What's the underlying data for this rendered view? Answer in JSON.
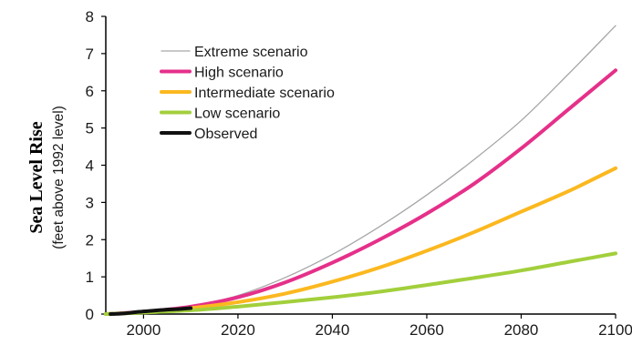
{
  "chart_data": {
    "type": "line",
    "title": "",
    "xlabel": "",
    "ylabel": "Sea Level Rise",
    "ylabel_sub": "(feet above 1992 level)",
    "xlim": [
      1992,
      2100
    ],
    "ylim": [
      0,
      8
    ],
    "xticks": [
      2000,
      2020,
      2040,
      2060,
      2080,
      2100
    ],
    "yticks": [
      0,
      1,
      2,
      3,
      4,
      5,
      6,
      7,
      8
    ],
    "grid": false,
    "legend_position": "top-left",
    "x": [
      1992,
      2000,
      2010,
      2020,
      2030,
      2040,
      2050,
      2060,
      2070,
      2080,
      2090,
      2100
    ],
    "series": [
      {
        "name": "Extreme scenario",
        "color": "#a6a6a6",
        "width": 1.3,
        "values": [
          0,
          0.06,
          0.2,
          0.5,
          0.98,
          1.6,
          2.35,
          3.2,
          4.15,
          5.2,
          6.45,
          7.75
        ]
      },
      {
        "name": "High scenario",
        "color": "#e5308a",
        "width": 4,
        "values": [
          0,
          0.06,
          0.2,
          0.45,
          0.85,
          1.38,
          2.0,
          2.7,
          3.5,
          4.45,
          5.5,
          6.55
        ]
      },
      {
        "name": "Intermediate scenario",
        "color": "#fbb81f",
        "width": 4,
        "values": [
          0,
          0.05,
          0.16,
          0.32,
          0.55,
          0.87,
          1.25,
          1.7,
          2.2,
          2.75,
          3.3,
          3.92
        ]
      },
      {
        "name": "Low scenario",
        "color": "#a2cf3c",
        "width": 4,
        "values": [
          0,
          0.04,
          0.1,
          0.2,
          0.32,
          0.45,
          0.6,
          0.78,
          0.97,
          1.17,
          1.4,
          1.63
        ]
      },
      {
        "name": "Observed",
        "color": "#111111",
        "width": 4,
        "x": [
          1993,
          1995,
          1997,
          1999,
          2001,
          2003,
          2005,
          2007,
          2009,
          2010
        ],
        "values": [
          0.0,
          0.01,
          0.03,
          0.06,
          0.08,
          0.1,
          0.12,
          0.13,
          0.15,
          0.16
        ]
      }
    ]
  }
}
